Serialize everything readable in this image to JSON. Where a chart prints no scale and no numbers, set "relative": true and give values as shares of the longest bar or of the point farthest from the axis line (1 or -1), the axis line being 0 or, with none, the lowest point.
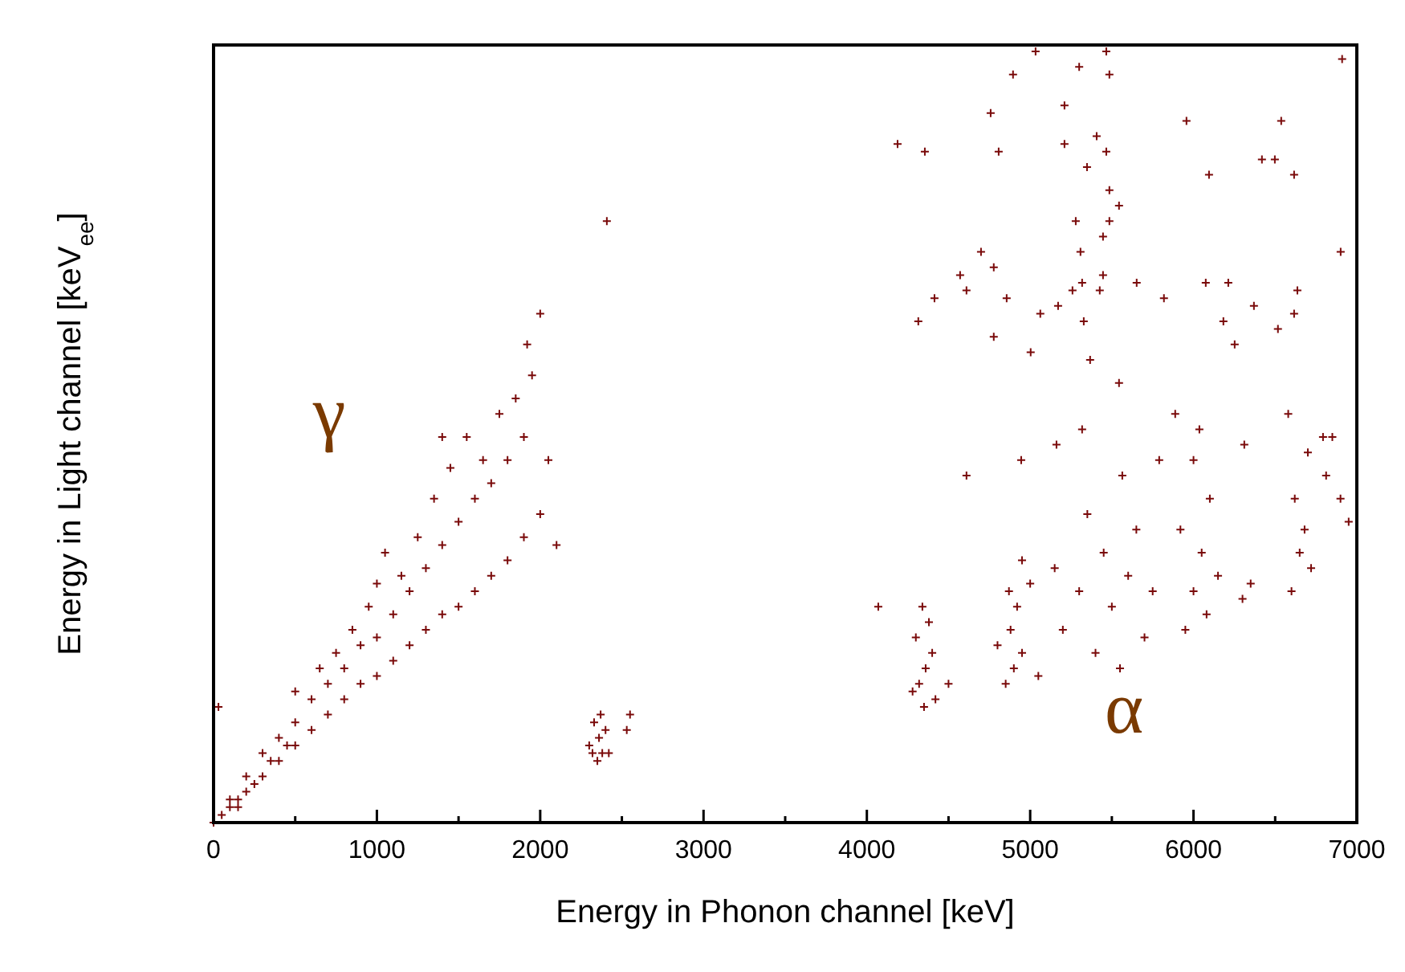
{
  "chart_data": {
    "type": "scatter",
    "xlabel": "Energy in Phonon channel [keV]",
    "ylabel": "Energy in Light channel [keV$_{ee}$]",
    "relative": true,
    "marker": "cross",
    "xlim": [
      0,
      7000
    ],
    "xticks": [
      0,
      {
        "value": 500,
        "label": null
      },
      1000,
      {
        "value": 1500,
        "label": null
      },
      2000,
      {
        "value": 2500,
        "label": null
      },
      3000,
      {
        "value": 3500,
        "label": null
      },
      4000,
      {
        "value": 4500,
        "label": null
      },
      5000,
      {
        "value": 5500,
        "label": null
      },
      6000,
      {
        "value": 6500,
        "label": null
      },
      7000
    ],
    "annotations": [
      "γ",
      "α"
    ],
    "series": [
      {
        "color": "#7a0a0a",
        "x": [
          0,
          50,
          150,
          100,
          100,
          150,
          200,
          200,
          250,
          300,
          300,
          350,
          400,
          400,
          450,
          500,
          500,
          500,
          600,
          600,
          650,
          700,
          700,
          750,
          800,
          800,
          850,
          900,
          900,
          950,
          1000,
          1000,
          1000,
          1050,
          1100,
          1100,
          1150,
          1200,
          1200,
          1250,
          1300,
          1300,
          1350,
          1400,
          1400,
          1450,
          1500,
          1500,
          1550,
          1600,
          1600,
          1650,
          1700,
          1700,
          1750,
          1800,
          1800,
          1850,
          1900,
          1900,
          1950,
          2000,
          2000,
          2050,
          2100,
          1920,
          1400,
          30,
          2408,
          2300,
          2330,
          2350,
          2360,
          2380,
          2400,
          2320,
          2370,
          2550,
          2530,
          2420,
          4350,
          4320,
          4360,
          4300,
          4380,
          4340,
          4400,
          4280,
          4420,
          4070,
          4500,
          4850,
          4900,
          4950,
          4880,
          4920,
          5000,
          4800,
          5050,
          4950,
          4870,
          5200,
          5300,
          5400,
          5450,
          5500,
          5550,
          5600,
          5700,
          5650,
          5350,
          5150,
          5750,
          5950,
          6000,
          6050,
          6100,
          6000,
          6080,
          5920,
          6150,
          6300,
          6350,
          6600,
          6650,
          6620,
          6700,
          6580,
          6680,
          6720,
          6850,
          6900,
          6950,
          5033,
          5466,
          6910,
          4895,
          5300,
          5485,
          4188,
          4355,
          4758,
          4807,
          5210,
          5210,
          5407,
          5466,
          5348,
          5957,
          6537,
          6498,
          6419,
          6616,
          6095,
          5485,
          5544,
          5279,
          5485,
          5446,
          5308,
          4699,
          4777,
          6901,
          4571,
          4414,
          4315,
          4610,
          4856,
          5062,
          5171,
          5259,
          5318,
          5426,
          5446,
          5328,
          5652,
          5819,
          6075,
          6213,
          6183,
          6252,
          6370,
          6517,
          6616,
          6636,
          4777,
          5003,
          5367,
          5544,
          5318,
          5161,
          4945,
          4610,
          5888,
          6036,
          6311,
          6793,
          6812,
          5564,
          5790
        ],
        "values": [
          0,
          0.01,
          0.02,
          0.02,
          0.03,
          0.03,
          0.04,
          0.06,
          0.05,
          0.06,
          0.09,
          0.08,
          0.08,
          0.11,
          0.1,
          0.1,
          0.13,
          0.17,
          0.12,
          0.16,
          0.2,
          0.14,
          0.18,
          0.22,
          0.16,
          0.2,
          0.25,
          0.18,
          0.23,
          0.28,
          0.19,
          0.24,
          0.31,
          0.35,
          0.21,
          0.27,
          0.32,
          0.23,
          0.3,
          0.37,
          0.25,
          0.33,
          0.42,
          0.27,
          0.36,
          0.46,
          0.28,
          0.39,
          0.5,
          0.3,
          0.42,
          0.47,
          0.32,
          0.44,
          0.53,
          0.34,
          0.47,
          0.55,
          0.37,
          0.5,
          0.58,
          0.4,
          0.66,
          0.47,
          0.36,
          0.62,
          0.5,
          0.15,
          0.78,
          0.1,
          0.13,
          0.08,
          0.11,
          0.09,
          0.12,
          0.09,
          0.14,
          0.14,
          0.12,
          0.09,
          0.15,
          0.18,
          0.2,
          0.24,
          0.26,
          0.28,
          0.22,
          0.17,
          0.16,
          0.28,
          0.18,
          0.18,
          0.2,
          0.22,
          0.25,
          0.28,
          0.31,
          0.23,
          0.19,
          0.34,
          0.3,
          0.25,
          0.3,
          0.22,
          0.35,
          0.28,
          0.2,
          0.32,
          0.24,
          0.38,
          0.4,
          0.33,
          0.3,
          0.25,
          0.3,
          0.35,
          0.42,
          0.47,
          0.27,
          0.38,
          0.32,
          0.29,
          0.31,
          0.3,
          0.35,
          0.42,
          0.48,
          0.53,
          0.38,
          0.33,
          0.5,
          0.42,
          0.39,
          1,
          1,
          0.99,
          0.97,
          0.98,
          0.97,
          0.88,
          0.87,
          0.92,
          0.87,
          0.93,
          0.88,
          0.89,
          0.87,
          0.85,
          0.91,
          0.91,
          0.86,
          0.86,
          0.84,
          0.84,
          0.82,
          0.8,
          0.78,
          0.78,
          0.76,
          0.74,
          0.74,
          0.72,
          0.74,
          0.71,
          0.68,
          0.65,
          0.69,
          0.68,
          0.66,
          0.67,
          0.69,
          0.7,
          0.69,
          0.71,
          0.65,
          0.7,
          0.68,
          0.7,
          0.7,
          0.65,
          0.62,
          0.67,
          0.64,
          0.66,
          0.69,
          0.63,
          0.61,
          0.6,
          0.57,
          0.51,
          0.49,
          0.47,
          0.45,
          0.53,
          0.51,
          0.49,
          0.5,
          0.45,
          0.45,
          0.47
        ]
      }
    ]
  }
}
